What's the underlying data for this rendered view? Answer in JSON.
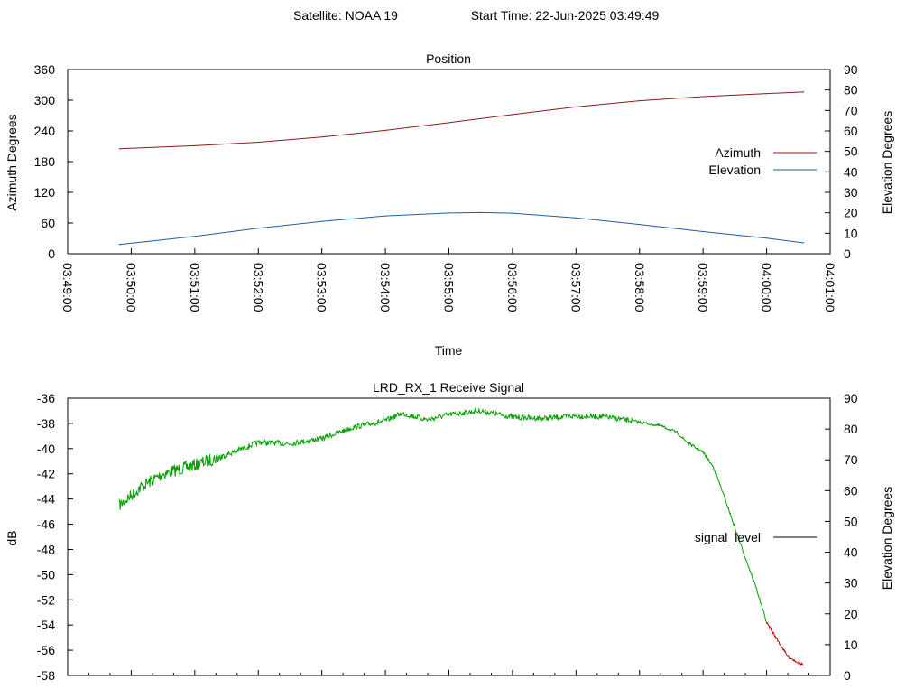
{
  "header": {
    "satellite_label": "Satellite: NOAA 19",
    "start_time_label": "Start Time: 22-Jun-2025 03:49:49"
  },
  "chart_data": [
    {
      "type": "line",
      "title": "Position",
      "xlabel": "Time",
      "ylabel": "Azimuth Degrees",
      "y2label": "Elevation Degrees",
      "xlim": [
        "03:49:00",
        "04:01:00"
      ],
      "ylim": [
        0,
        360
      ],
      "y2lim": [
        0,
        90
      ],
      "xticks": [
        "03:49:00",
        "03:50:00",
        "03:51:00",
        "03:52:00",
        "03:53:00",
        "03:54:00",
        "03:55:00",
        "03:56:00",
        "03:57:00",
        "03:58:00",
        "03:59:00",
        "04:00:00",
        "04:01:00"
      ],
      "yticks": [
        "0",
        "60",
        "120",
        "180",
        "240",
        "300",
        "360"
      ],
      "y2ticks": [
        "0",
        "10",
        "20",
        "30",
        "40",
        "50",
        "60",
        "70",
        "80",
        "90"
      ],
      "legend_position": "right",
      "grid": false,
      "series": [
        {
          "name": "Azimuth",
          "axis": "y",
          "color": "#8b1a1a",
          "x": [
            "03:49:49",
            "03:51:00",
            "03:52:00",
            "03:53:00",
            "03:54:00",
            "03:55:00",
            "03:56:00",
            "03:57:00",
            "03:58:00",
            "03:59:00",
            "04:00:00",
            "04:00:35"
          ],
          "y": [
            205,
            211,
            218,
            228,
            241,
            256,
            272,
            287,
            299,
            307,
            313,
            316
          ]
        },
        {
          "name": "Elevation",
          "axis": "y2",
          "color": "#1f5fa0",
          "x": [
            "03:49:49",
            "03:51:00",
            "03:52:00",
            "03:53:00",
            "03:54:00",
            "03:55:00",
            "03:55:30",
            "03:56:00",
            "03:57:00",
            "03:58:00",
            "03:59:00",
            "04:00:00",
            "04:00:35"
          ],
          "y": [
            4.5,
            8.5,
            12.5,
            15.8,
            18.5,
            19.9,
            20.1,
            19.8,
            17.5,
            14.3,
            10.8,
            7.6,
            5.3
          ]
        }
      ]
    },
    {
      "type": "line",
      "title": "LRD_RX_1 Receive Signal",
      "xlabel": "",
      "ylabel": "dB",
      "y2label": "Elevation Degrees",
      "xlim": [
        "03:49:00",
        "04:01:00"
      ],
      "ylim": [
        -58,
        -36
      ],
      "y2lim": [
        0,
        90
      ],
      "yticks": [
        "-36",
        "-38",
        "-40",
        "-42",
        "-44",
        "-46",
        "-48",
        "-50",
        "-52",
        "-54",
        "-56",
        "-58"
      ],
      "y2ticks": [
        "0",
        "10",
        "20",
        "30",
        "40",
        "50",
        "60",
        "70",
        "80",
        "90"
      ],
      "legend_position": "right",
      "grid": false,
      "series": [
        {
          "name": "signal_level",
          "axis": "y",
          "color": "#00a000",
          "tail_color": "#c00000",
          "legend_color": "#000000",
          "x": [
            "03:49:49",
            "03:50:10",
            "03:50:30",
            "03:51:00",
            "03:51:30",
            "03:52:00",
            "03:52:30",
            "03:53:00",
            "03:53:30",
            "03:54:00",
            "03:54:15",
            "03:54:40",
            "03:55:00",
            "03:55:30",
            "03:56:00",
            "03:56:30",
            "03:57:00",
            "03:57:30",
            "03:58:00",
            "03:58:20",
            "03:58:35",
            "03:58:45",
            "03:59:00",
            "03:59:10",
            "03:59:20",
            "03:59:35",
            "03:59:50",
            "04:00:00",
            "04:00:20",
            "04:00:35"
          ],
          "y": [
            -44.5,
            -43.0,
            -42.0,
            -41.3,
            -40.5,
            -39.5,
            -39.6,
            -39.2,
            -38.3,
            -37.8,
            -37.2,
            -37.7,
            -37.3,
            -37.0,
            -37.5,
            -37.6,
            -37.4,
            -37.5,
            -37.9,
            -38.2,
            -38.7,
            -39.5,
            -40.3,
            -41.5,
            -43.8,
            -47.5,
            -51.0,
            -53.8,
            -56.5,
            -57.2
          ]
        }
      ]
    }
  ]
}
